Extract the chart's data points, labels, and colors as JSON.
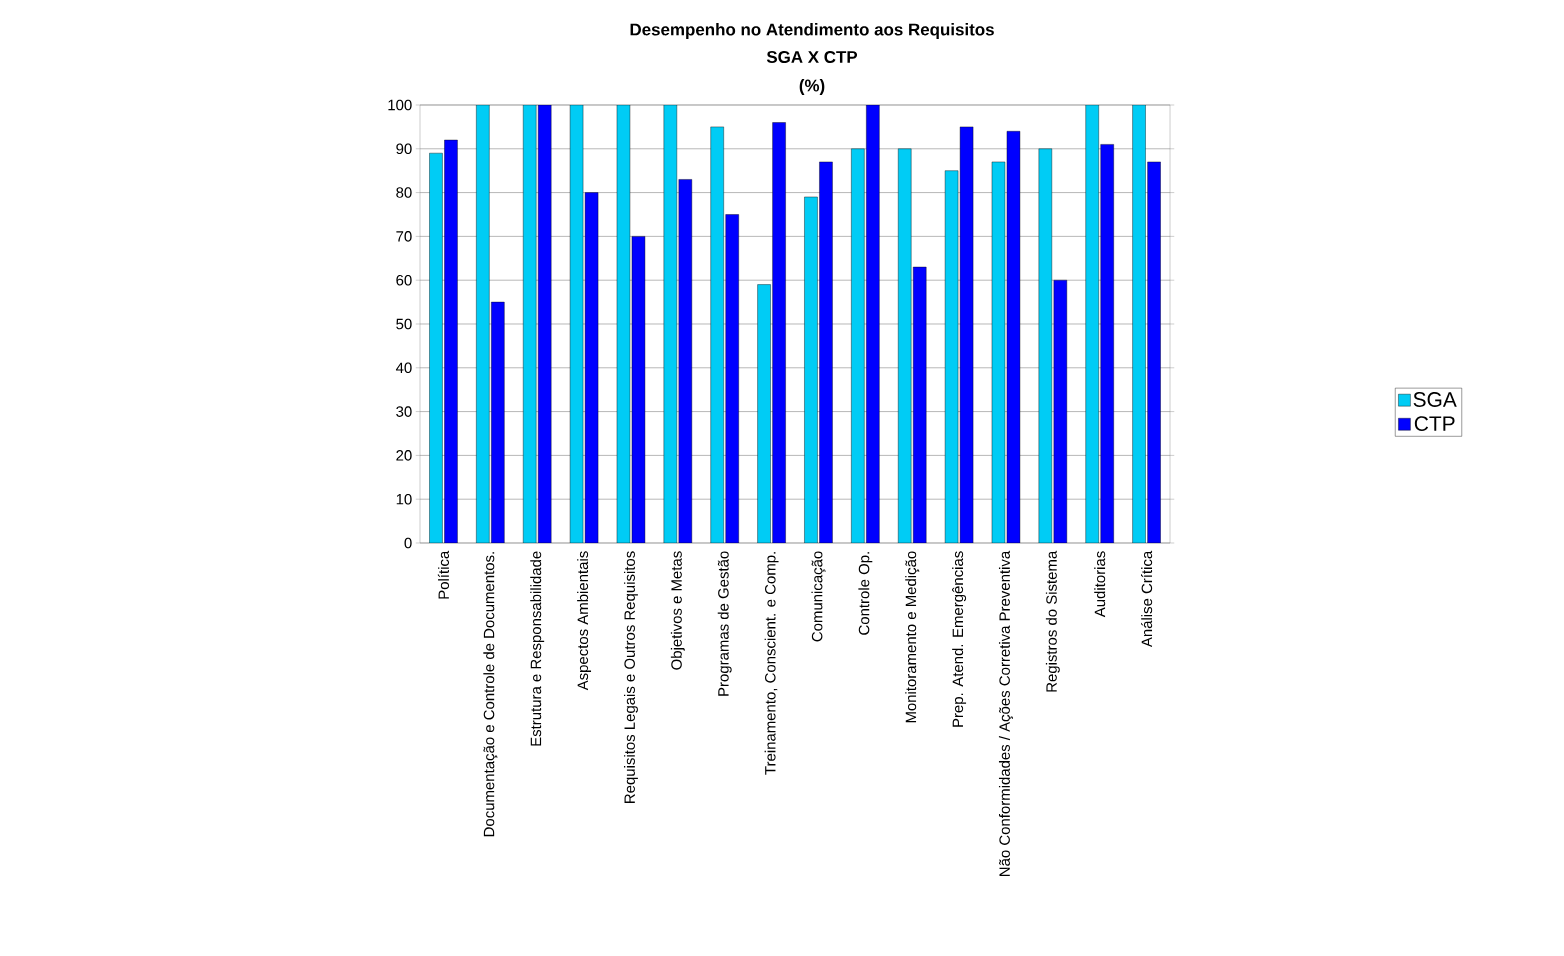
{
  "chart_data": {
    "type": "bar",
    "title": "Desempenho no Atendimento aos Requisitos",
    "subtitle": "SGA X CTP",
    "annotations": [
      "(%)"
    ],
    "categories": [
      "Política",
      "Documentação e Controle de Documentos.",
      "Estrutura e Responsabilidade",
      "Aspectos Ambientais",
      "Requisitos Legais e Outros Requisitos",
      "Objetivos e Metas",
      "Programas de Gestão",
      "Treinamento, Conscient. e Comp.",
      "Comunicação",
      "Controle Op.",
      "Monitoramento e Medição",
      "Prep. Atend. Emergências",
      "Não Conformidades / Ações Corretiva Preventiva",
      "Registros do Sistema",
      "Auditorias",
      "Análise Crítica"
    ],
    "series": [
      {
        "name": "SGA",
        "color": "#00ccf5",
        "values": [
          89,
          100,
          100,
          100,
          100,
          100,
          95,
          59,
          79,
          90,
          90,
          85,
          87,
          90,
          100,
          100
        ]
      },
      {
        "name": "CTP",
        "color": "#0000ff",
        "values": [
          92,
          55,
          100,
          80,
          70,
          83,
          75,
          96,
          87,
          100,
          63,
          95,
          94,
          60,
          91,
          87
        ]
      }
    ],
    "ylim": [
      0,
      100
    ],
    "yticks": [
      0,
      10,
      20,
      30,
      40,
      50,
      60,
      70,
      80,
      90,
      100
    ],
    "grid": "y",
    "legend": "right"
  }
}
